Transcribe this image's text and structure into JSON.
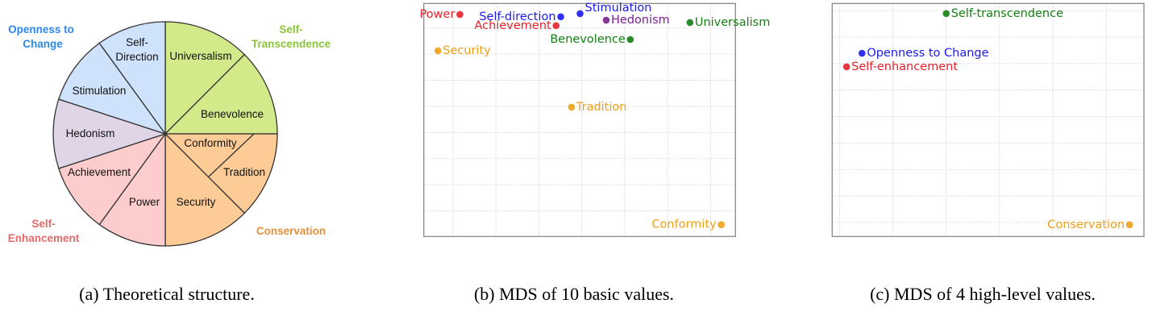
{
  "panel_a": {
    "caption": "(a) Theoretical structure.",
    "slices": {
      "universalism": "Universalism",
      "benevolence": "Benevolence",
      "conformity": "Conformity",
      "tradition": "Tradition",
      "security": "Security",
      "power": "Power",
      "achievement": "Achievement",
      "hedonism": "Hedonism",
      "stimulation": "Stimulation",
      "self_direction_1": "Self-",
      "self_direction_2": "Direction"
    },
    "groups": {
      "openness_1": "Openness to",
      "openness_2": "Change",
      "self_transcendence_1": "Self-",
      "self_transcendence_2": "Transcendence",
      "self_enhancement_1": "Self-",
      "self_enhancement_2": "Enhancement",
      "conservation": "Conservation"
    },
    "colors": {
      "openness": "#cfe2fc",
      "self_transcendence": "#d3ea8a",
      "hedonism": "#e0d5e6",
      "self_enhancement": "#fdcccc",
      "conservation": "#fdcb96",
      "openness_text": "#2a88f0",
      "self_transcendence_text": "#8cc43c",
      "self_enhancement_text": "#e46a6a",
      "conservation_text": "#e8903a"
    }
  },
  "chart_data": [
    {
      "type": "scatter",
      "title": "",
      "caption": "(b) MDS of 10 basic values.",
      "xlabel": "",
      "ylabel": "",
      "xlim": [
        -0.68,
        6.58
      ],
      "ylim": [
        -0.98,
        7.94
      ],
      "grid": true,
      "tick_labels": false,
      "points": [
        {
          "label": "Power",
          "x": 0.16,
          "y": 7.52,
          "color": "#e8202a"
        },
        {
          "label": "Self-direction",
          "x": 2.51,
          "y": 7.43,
          "color": "#1a1af0"
        },
        {
          "label": "Stimulation",
          "x": 2.96,
          "y": 7.55,
          "color": "#1a1af0"
        },
        {
          "label": "Achievement",
          "x": 2.4,
          "y": 7.09,
          "color": "#e8202a"
        },
        {
          "label": "Hedonism",
          "x": 3.57,
          "y": 7.3,
          "color": "#7b1f8f"
        },
        {
          "label": "Universalism",
          "x": 5.52,
          "y": 7.21,
          "color": "#128012"
        },
        {
          "label": "Benevolence",
          "x": 4.13,
          "y": 6.56,
          "color": "#128012"
        },
        {
          "label": "Security",
          "x": -0.35,
          "y": 6.13,
          "color": "#f0a015"
        },
        {
          "label": "Tradition",
          "x": 2.76,
          "y": 3.97,
          "color": "#f0a015"
        },
        {
          "label": "Conformity",
          "x": 6.25,
          "y": -0.53,
          "color": "#f0a015"
        }
      ]
    },
    {
      "type": "scatter",
      "title": "",
      "caption": "(c) MDS of 4 high-level values.",
      "xlabel": "",
      "ylabel": "",
      "xlim": [
        -0.14,
        5.71
      ],
      "ylim": [
        -0.53,
        8.27
      ],
      "grid": true,
      "tick_labels": false,
      "points": [
        {
          "label": "Self-transcendence",
          "x": 2.0,
          "y": 7.89,
          "color": "#128012"
        },
        {
          "label": "Openness to Change",
          "x": 0.42,
          "y": 6.39,
          "color": "#1a1af0"
        },
        {
          "label": "Self-enhancement",
          "x": 0.13,
          "y": 5.88,
          "color": "#e8202a"
        },
        {
          "label": "Conservation",
          "x": 5.44,
          "y": -0.09,
          "color": "#f0a015"
        }
      ]
    }
  ]
}
